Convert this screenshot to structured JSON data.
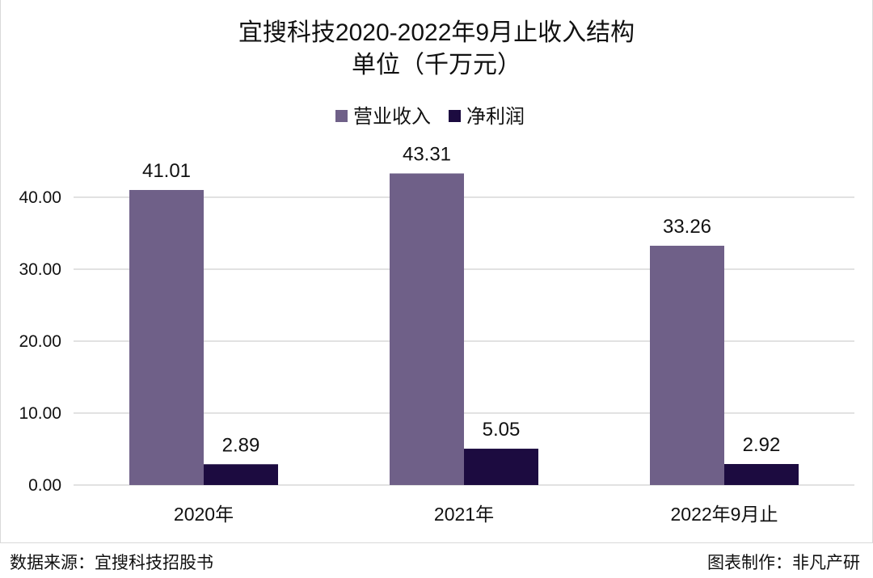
{
  "chart_data": {
    "type": "bar",
    "title": "宜搜科技2020-2022年9月止收入结构",
    "subtitle": "单位（千万元）",
    "categories": [
      "2020年",
      "2021年",
      "2022年9月止"
    ],
    "series": [
      {
        "name": "营业收入",
        "values": [
          41.01,
          43.31,
          33.26
        ],
        "color": "#6f6088"
      },
      {
        "name": "净利润",
        "values": [
          2.89,
          5.05,
          2.92
        ],
        "color": "#1c0b40"
      }
    ],
    "ylim": [
      0,
      40
    ],
    "yticks": [
      "0.00",
      "10.00",
      "20.00",
      "30.00",
      "40.00"
    ],
    "grid": true,
    "legend_position": "top"
  },
  "footer": {
    "source": "数据来源：宜搜科技招股书",
    "credit": "图表制作：非凡产研"
  }
}
